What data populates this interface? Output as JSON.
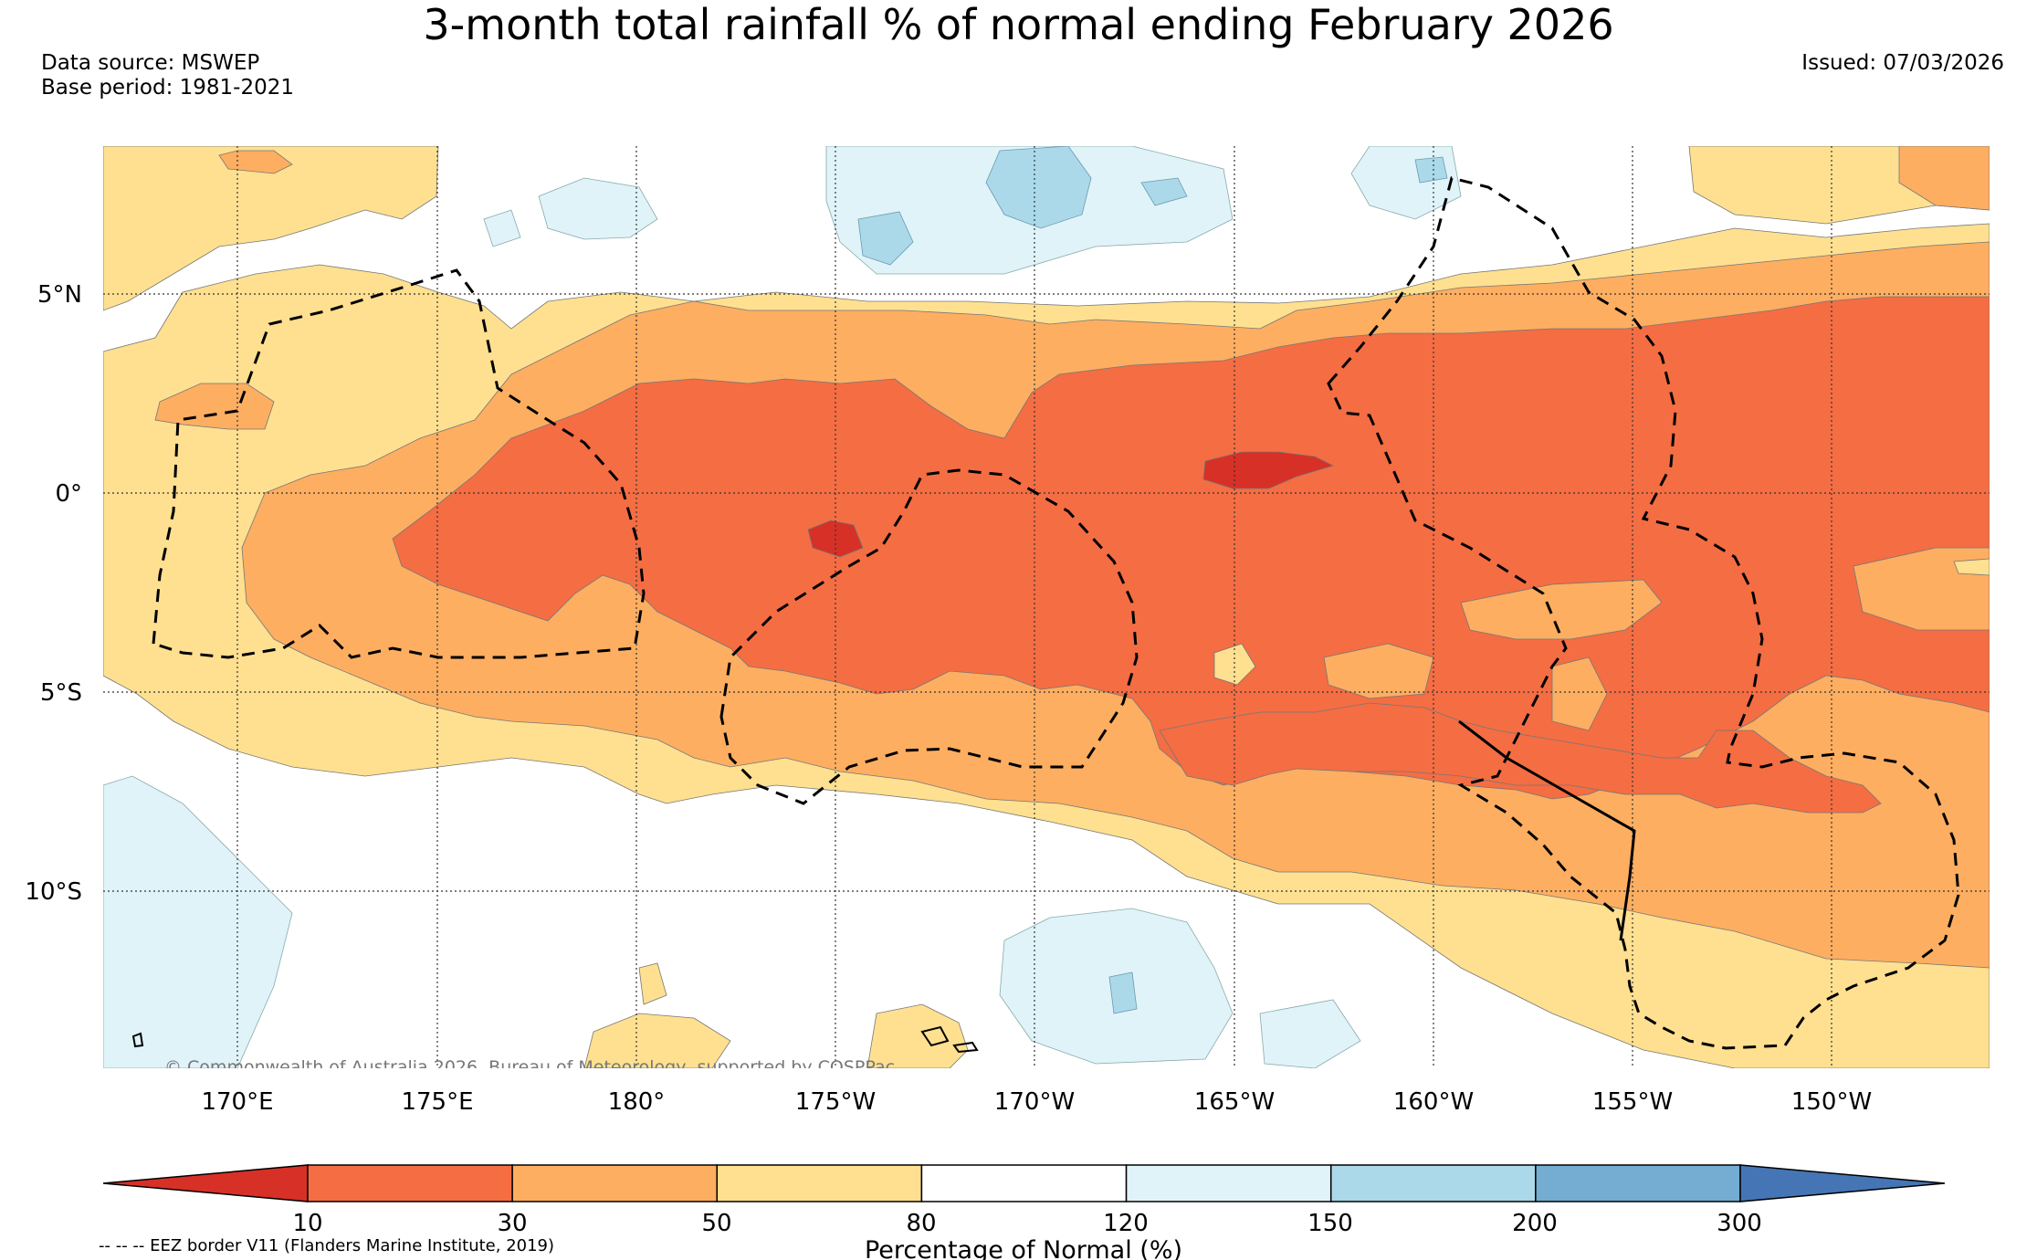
{
  "title": "3-month total rainfall % of normal ending February 2026",
  "data_source": "Data source: MSWEP",
  "base_period": "Base period: 1981-2021",
  "issued": "Issued: 07/03/2026",
  "copyright": "© Commonwealth of Australia 2026, Bureau of Meteorology, supported by COSPPac",
  "lon_labels": [
    "170°E",
    "175°E",
    "180°",
    "175°W",
    "170°W",
    "165°W",
    "160°W",
    "155°W",
    "150°W"
  ],
  "lat_labels": [
    "5°N",
    "0°",
    "5°S",
    "10°S"
  ],
  "colorbar": {
    "ticks": [
      "10",
      "30",
      "50",
      "80",
      "120",
      "150",
      "200",
      "300"
    ],
    "label": "Percentage of Normal (%)",
    "colors": [
      "#d73027",
      "#f46d43",
      "#fdae61",
      "#fee090",
      "#ffffff",
      "#e0f3f8",
      "#abd9e9",
      "#74add1",
      "#4575b4"
    ]
  },
  "legend_eez": "-- -- -- EEZ border V11 (Flanders Marine Institute, 2019)"
}
